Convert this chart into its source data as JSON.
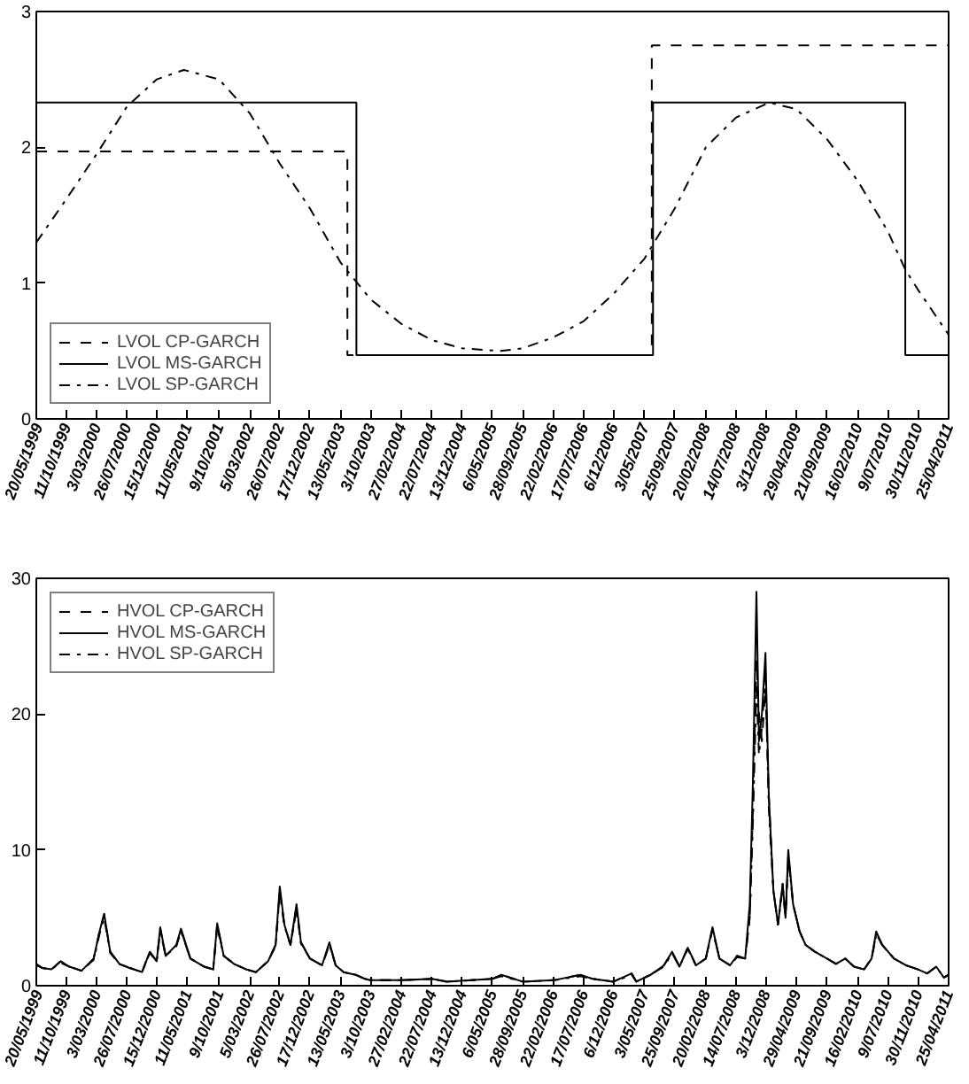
{
  "chart_data": [
    {
      "type": "line",
      "xlim": [
        "1999-05-20",
        "2011-04-25"
      ],
      "ylim": [
        0,
        3
      ],
      "yticks": [
        0,
        1,
        2,
        3
      ],
      "xticks": [
        {
          "value": "1999-05-20",
          "label": "20/05/1999"
        },
        {
          "value": "1999-10-11",
          "label": "11/10/1999"
        },
        {
          "value": "2000-03-03",
          "label": "3/03/2000"
        },
        {
          "value": "2000-07-26",
          "label": "26/07/2000"
        },
        {
          "value": "2000-12-15",
          "label": "15/12/2000"
        },
        {
          "value": "2001-05-11",
          "label": "11/05/2001"
        },
        {
          "value": "2001-10-09",
          "label": "9/10/2001"
        },
        {
          "value": "2002-03-05",
          "label": "5/03/2002"
        },
        {
          "value": "2002-07-26",
          "label": "26/07/2002"
        },
        {
          "value": "2002-12-17",
          "label": "17/12/2002"
        },
        {
          "value": "2003-05-13",
          "label": "13/05/2003"
        },
        {
          "value": "2003-10-03",
          "label": "3/10/2003"
        },
        {
          "value": "2004-02-27",
          "label": "27/02/2004"
        },
        {
          "value": "2004-07-22",
          "label": "22/07/2004"
        },
        {
          "value": "2004-12-13",
          "label": "13/12/2004"
        },
        {
          "value": "2005-05-06",
          "label": "6/05/2005"
        },
        {
          "value": "2005-09-28",
          "label": "28/09/2005"
        },
        {
          "value": "2006-02-22",
          "label": "22/02/2006"
        },
        {
          "value": "2006-07-17",
          "label": "17/07/2006"
        },
        {
          "value": "2006-12-06",
          "label": "6/12/2006"
        },
        {
          "value": "2007-05-03",
          "label": "3/05/2007"
        },
        {
          "value": "2007-09-25",
          "label": "25/09/2007"
        },
        {
          "value": "2008-02-20",
          "label": "20/02/2008"
        },
        {
          "value": "2008-07-14",
          "label": "14/07/2008"
        },
        {
          "value": "2008-12-03",
          "label": "3/12/2008"
        },
        {
          "value": "2009-04-29",
          "label": "29/04/2009"
        },
        {
          "value": "2009-09-21",
          "label": "21/09/2009"
        },
        {
          "value": "2010-02-16",
          "label": "16/02/2010"
        },
        {
          "value": "2010-07-09",
          "label": "9/07/2010"
        },
        {
          "value": "2010-11-30",
          "label": "30/11/2010"
        },
        {
          "value": "2011-04-25",
          "label": "25/04/2011"
        }
      ],
      "legend": "bottom left",
      "grid": false,
      "series": [
        {
          "name": "LVOL CP-GARCH",
          "type": "step",
          "color": "#000000",
          "line_style": "dashed",
          "x": [
            "1999-05-20",
            "2003-06-14",
            "2007-06-07",
            "2011-04-25"
          ],
          "values": [
            1.97,
            0.47,
            2.75,
            2.75
          ]
        },
        {
          "name": "LVOL MS-GARCH",
          "type": "step",
          "color": "#000000",
          "line_style": "solid",
          "x": [
            "1999-05-20",
            "2003-07-27",
            "2007-06-13",
            "2010-09-30",
            "2011-04-25"
          ],
          "values": [
            2.33,
            0.47,
            2.33,
            0.47,
            0.47
          ]
        },
        {
          "name": "LVOL SP-GARCH",
          "type": "line",
          "color": "#000000",
          "line_style": "dashdot",
          "x": [
            "1999-05-20",
            "1999-10-11",
            "2000-03-03",
            "2000-07-26",
            "2000-12-15",
            "2001-04-24",
            "2001-10-09",
            "2002-03-05",
            "2002-07-26",
            "2002-12-17",
            "2003-05-13",
            "2003-10-03",
            "2004-02-27",
            "2004-07-22",
            "2004-12-13",
            "2005-06-13",
            "2005-09-28",
            "2006-02-22",
            "2006-07-17",
            "2006-12-06",
            "2007-05-03",
            "2007-09-25",
            "2008-02-20",
            "2008-07-14",
            "2008-12-20",
            "2009-04-29",
            "2009-09-21",
            "2010-02-16",
            "2010-07-09",
            "2010-09-30",
            "2010-11-30",
            "2011-04-25"
          ],
          "values": [
            1.3,
            1.62,
            1.95,
            2.3,
            2.5,
            2.57,
            2.5,
            2.25,
            1.88,
            1.55,
            1.15,
            0.88,
            0.7,
            0.58,
            0.52,
            0.5,
            0.52,
            0.6,
            0.72,
            0.92,
            1.18,
            1.55,
            2.0,
            2.22,
            2.33,
            2.28,
            2.06,
            1.75,
            1.38,
            1.1,
            0.95,
            0.62
          ]
        }
      ]
    },
    {
      "type": "line",
      "xlim": [
        "1999-05-20",
        "2011-04-25"
      ],
      "ylim": [
        0,
        30
      ],
      "yticks": [
        0,
        10,
        20,
        30
      ],
      "xticks": [
        {
          "value": "1999-05-20",
          "label": "20/05/1999"
        },
        {
          "value": "1999-10-11",
          "label": "11/10/1999"
        },
        {
          "value": "2000-03-03",
          "label": "3/03/2000"
        },
        {
          "value": "2000-07-26",
          "label": "26/07/2000"
        },
        {
          "value": "2000-12-15",
          "label": "15/12/2000"
        },
        {
          "value": "2001-05-11",
          "label": "11/05/2001"
        },
        {
          "value": "2001-10-09",
          "label": "9/10/2001"
        },
        {
          "value": "2002-03-05",
          "label": "5/03/2002"
        },
        {
          "value": "2002-07-26",
          "label": "26/07/2002"
        },
        {
          "value": "2002-12-17",
          "label": "17/12/2002"
        },
        {
          "value": "2003-05-13",
          "label": "13/05/2003"
        },
        {
          "value": "2003-10-03",
          "label": "3/10/2003"
        },
        {
          "value": "2004-02-27",
          "label": "27/02/2004"
        },
        {
          "value": "2004-07-22",
          "label": "22/07/2004"
        },
        {
          "value": "2004-12-13",
          "label": "13/12/2004"
        },
        {
          "value": "2005-05-06",
          "label": "6/05/2005"
        },
        {
          "value": "2005-09-28",
          "label": "28/09/2005"
        },
        {
          "value": "2006-02-22",
          "label": "22/02/2006"
        },
        {
          "value": "2006-07-17",
          "label": "17/07/2006"
        },
        {
          "value": "2006-12-06",
          "label": "6/12/2006"
        },
        {
          "value": "2007-05-03",
          "label": "3/05/2007"
        },
        {
          "value": "2007-09-25",
          "label": "25/09/2007"
        },
        {
          "value": "2008-02-20",
          "label": "20/02/2008"
        },
        {
          "value": "2008-07-14",
          "label": "14/07/2008"
        },
        {
          "value": "2008-12-03",
          "label": "3/12/2008"
        },
        {
          "value": "2009-04-29",
          "label": "29/04/2009"
        },
        {
          "value": "2009-09-21",
          "label": "21/09/2009"
        },
        {
          "value": "2010-02-16",
          "label": "16/02/2010"
        },
        {
          "value": "2010-07-09",
          "label": "9/07/2010"
        },
        {
          "value": "2010-11-30",
          "label": "30/11/2010"
        },
        {
          "value": "2011-04-25",
          "label": "25/04/2011"
        }
      ],
      "legend": "top left",
      "grid": false,
      "x": [
        "1999-05-20",
        "1999-06-18",
        "1999-07-31",
        "1999-09-13",
        "1999-10-25",
        "1999-12-22",
        "2000-02-18",
        "2000-03-17",
        "2000-04-08",
        "2000-05-07",
        "2000-06-20",
        "2000-08-09",
        "2000-10-06",
        "2000-11-12",
        "2000-12-15",
        "2001-01-01",
        "2001-01-27",
        "2001-03-19",
        "2001-04-10",
        "2001-05-25",
        "2001-07-30",
        "2001-09-11",
        "2001-09-30",
        "2001-10-31",
        "2001-12-20",
        "2002-02-16",
        "2002-04-03",
        "2002-05-31",
        "2002-07-06",
        "2002-07-26",
        "2002-08-17",
        "2002-09-15",
        "2002-10-14",
        "2002-11-04",
        "2002-12-17",
        "2003-02-13",
        "2003-03-20",
        "2003-04-19",
        "2003-05-27",
        "2003-07-24",
        "2003-09-06",
        "2003-10-03",
        "2004-02-27",
        "2004-07-22",
        "2004-10-02",
        "2005-05-06",
        "2005-06-18",
        "2005-09-28",
        "2006-02-22",
        "2006-07-02",
        "2006-08-29",
        "2006-12-06",
        "2007-03-03",
        "2007-03-25",
        "2007-06-01",
        "2007-08-04",
        "2007-09-12",
        "2007-10-17",
        "2007-11-26",
        "2008-01-04",
        "2008-02-20",
        "2008-03-23",
        "2008-04-25",
        "2008-06-15",
        "2008-07-18",
        "2008-08-26",
        "2008-09-17",
        "2008-10-02",
        "2008-10-19",
        "2008-10-31",
        "2008-11-14",
        "2008-12-01",
        "2008-12-17",
        "2009-01-08",
        "2009-01-30",
        "2009-02-21",
        "2009-03-07",
        "2009-03-20",
        "2009-04-12",
        "2009-05-13",
        "2009-06-11",
        "2009-07-25",
        "2009-09-21",
        "2009-11-03",
        "2009-12-17",
        "2010-01-28",
        "2010-03-17",
        "2010-04-22",
        "2010-05-14",
        "2010-06-12",
        "2010-08-07",
        "2010-10-04",
        "2010-11-30",
        "2011-01-12",
        "2011-02-25",
        "2011-04-02",
        "2011-04-25"
      ],
      "series": [
        {
          "name": "HVOL CP-GARCH",
          "color": "#000000",
          "line_style": "dashed",
          "values": [
            1.6,
            1.3,
            1.2,
            1.8,
            1.4,
            1.1,
            2.0,
            4.0,
            5.2,
            2.5,
            1.6,
            1.3,
            1.0,
            2.5,
            1.8,
            4.2,
            2.2,
            3.0,
            4.1,
            2.0,
            1.4,
            1.2,
            4.5,
            2.2,
            1.6,
            1.2,
            1.0,
            1.8,
            3.0,
            7.0,
            4.5,
            3.0,
            5.8,
            3.2,
            2.0,
            1.5,
            3.1,
            1.5,
            1.0,
            0.8,
            0.5,
            0.4,
            0.4,
            0.5,
            0.3,
            0.5,
            0.8,
            0.3,
            0.4,
            0.8,
            0.5,
            0.3,
            0.9,
            0.3,
            0.8,
            1.5,
            2.5,
            1.4,
            2.8,
            1.5,
            2.0,
            4.2,
            2.0,
            1.5,
            2.2,
            2.0,
            5,
            13,
            24,
            20,
            18,
            22,
            14,
            7,
            4.5,
            7.5,
            5,
            9.5,
            6,
            4,
            3,
            2.5,
            2.0,
            1.6,
            2.0,
            1.4,
            1.2,
            2.0,
            3.8,
            3.0,
            2.0,
            1.5,
            1.2,
            0.9,
            1.4,
            0.6,
            0.8
          ]
        },
        {
          "name": "HVOL MS-GARCH",
          "color": "#000000",
          "line_style": "solid",
          "values": [
            1.6,
            1.3,
            1.2,
            1.8,
            1.4,
            1.1,
            2.0,
            4.0,
            5.3,
            2.5,
            1.6,
            1.3,
            1.0,
            2.5,
            1.8,
            4.3,
            2.2,
            3.0,
            4.2,
            2.0,
            1.4,
            1.2,
            4.6,
            2.2,
            1.6,
            1.2,
            1.0,
            1.8,
            3.0,
            7.3,
            4.5,
            3.0,
            6.0,
            3.2,
            2.0,
            1.5,
            3.2,
            1.5,
            1.0,
            0.8,
            0.5,
            0.4,
            0.4,
            0.5,
            0.3,
            0.5,
            0.8,
            0.3,
            0.4,
            0.8,
            0.5,
            0.3,
            0.9,
            0.3,
            0.8,
            1.5,
            2.5,
            1.4,
            2.8,
            1.5,
            2.0,
            4.3,
            2.0,
            1.5,
            2.2,
            2.0,
            6,
            15,
            29,
            18,
            20,
            24.5,
            14,
            7,
            4.5,
            7.5,
            5,
            10,
            6,
            4,
            3,
            2.5,
            2.0,
            1.6,
            2.0,
            1.4,
            1.2,
            2.0,
            4.0,
            3.0,
            2.0,
            1.5,
            1.2,
            0.9,
            1.4,
            0.6,
            0.8
          ]
        },
        {
          "name": "HVOL SP-GARCH",
          "color": "#000000",
          "line_style": "dashdot",
          "values": [
            1.5,
            1.3,
            1.2,
            1.7,
            1.4,
            1.1,
            1.9,
            3.8,
            5.0,
            2.4,
            1.6,
            1.3,
            1.0,
            2.4,
            1.8,
            4.0,
            2.2,
            2.9,
            4.0,
            2.0,
            1.4,
            1.2,
            4.3,
            2.2,
            1.6,
            1.2,
            1.0,
            1.8,
            2.9,
            6.8,
            4.4,
            3.0,
            5.6,
            3.1,
            2.0,
            1.5,
            3.0,
            1.5,
            1.0,
            0.8,
            0.5,
            0.4,
            0.4,
            0.5,
            0.3,
            0.5,
            0.7,
            0.3,
            0.4,
            0.7,
            0.5,
            0.3,
            0.8,
            0.3,
            0.8,
            1.4,
            2.4,
            1.4,
            2.7,
            1.5,
            2.0,
            4.1,
            2.0,
            1.5,
            2.1,
            2.0,
            5,
            12,
            22,
            17,
            19,
            23,
            13,
            7,
            4.5,
            7.2,
            5,
            9.6,
            6,
            4,
            3,
            2.5,
            2.0,
            1.6,
            2.0,
            1.4,
            1.2,
            2.0,
            3.7,
            3.0,
            2.0,
            1.5,
            1.2,
            0.9,
            1.4,
            0.6,
            0.8
          ]
        }
      ]
    }
  ]
}
